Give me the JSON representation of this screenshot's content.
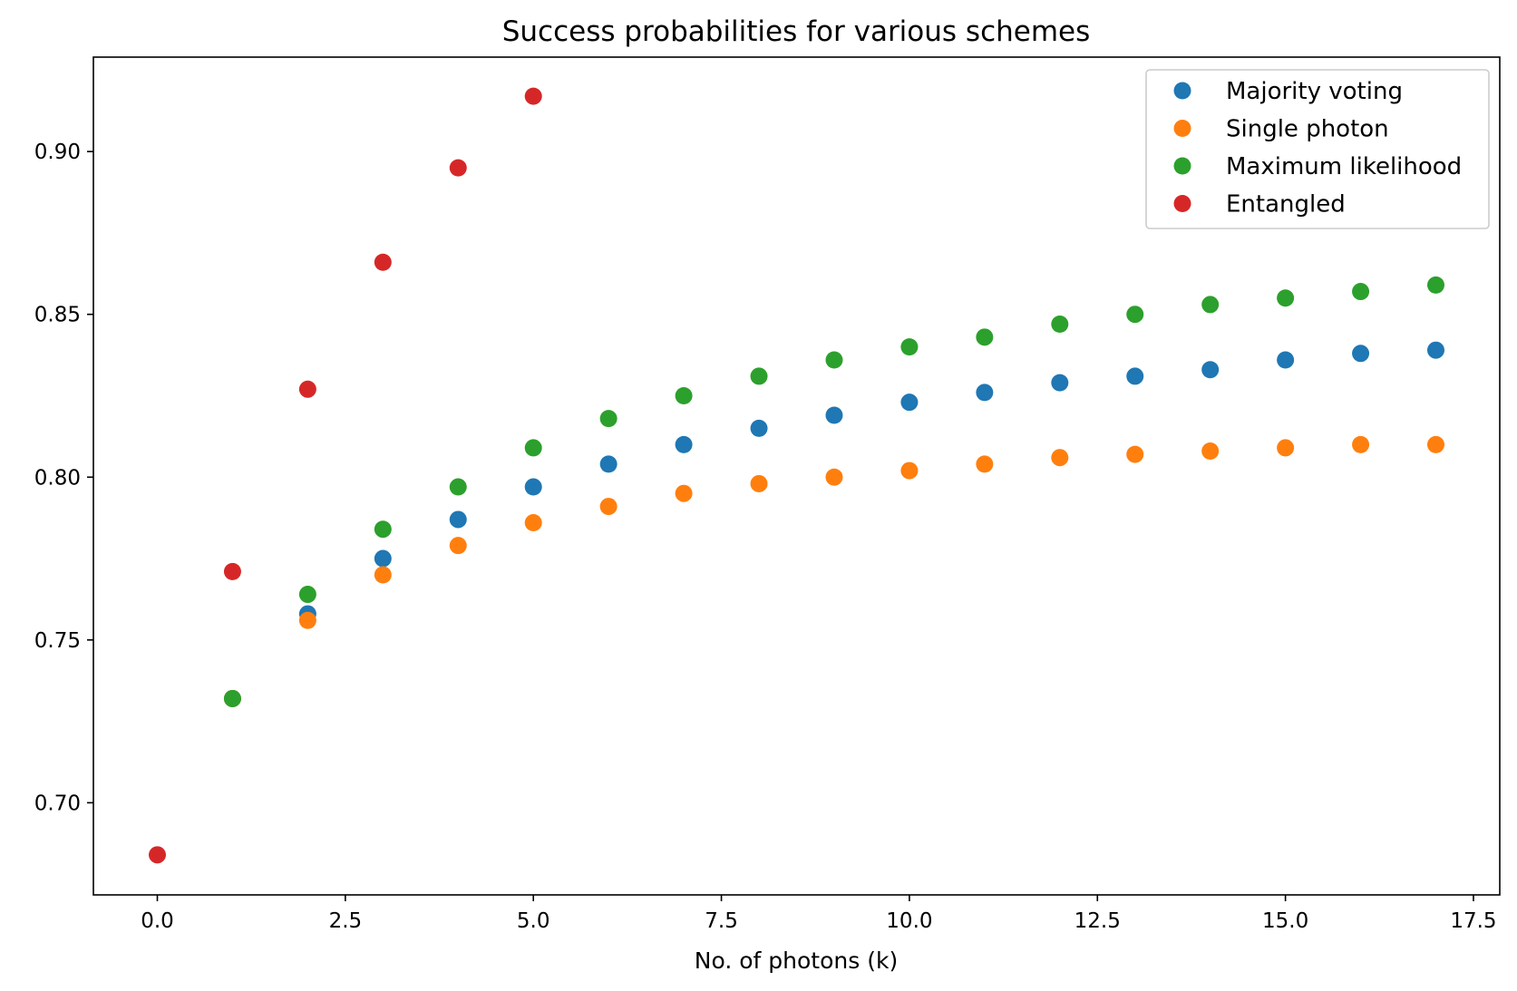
{
  "chart_data": {
    "type": "scatter",
    "title": "Success probabilities for various schemes",
    "xlabel": "No. of photons (k)",
    "ylabel": "",
    "xlim": [
      -0.85,
      17.85
    ],
    "ylim": [
      0.6717,
      0.929
    ],
    "xticks": [
      0.0,
      2.5,
      5.0,
      7.5,
      10.0,
      12.5,
      15.0,
      17.5
    ],
    "xtick_labels": [
      "0.0",
      "2.5",
      "5.0",
      "7.5",
      "10.0",
      "12.5",
      "15.0",
      "17.5"
    ],
    "yticks": [
      0.7,
      0.75,
      0.8,
      0.85,
      0.9
    ],
    "ytick_labels": [
      "0.70",
      "0.75",
      "0.80",
      "0.85",
      "0.90"
    ],
    "grid": false,
    "legend_position": "top-right",
    "series": [
      {
        "name": "Majority voting",
        "color": "#1f77b4",
        "x": [
          1,
          2,
          3,
          4,
          5,
          6,
          7,
          8,
          9,
          10,
          11,
          12,
          13,
          14,
          15,
          16,
          17
        ],
        "y": [
          0.732,
          0.758,
          0.775,
          0.787,
          0.797,
          0.804,
          0.81,
          0.815,
          0.819,
          0.823,
          0.826,
          0.829,
          0.831,
          0.833,
          0.836,
          0.838,
          0.839
        ]
      },
      {
        "name": "Single photon",
        "color": "#ff7f0e",
        "x": [
          1,
          2,
          3,
          4,
          5,
          6,
          7,
          8,
          9,
          10,
          11,
          12,
          13,
          14,
          15,
          16,
          17
        ],
        "y": [
          0.732,
          0.756,
          0.77,
          0.779,
          0.786,
          0.791,
          0.795,
          0.798,
          0.8,
          0.802,
          0.804,
          0.806,
          0.807,
          0.808,
          0.809,
          0.81,
          0.81
        ]
      },
      {
        "name": "Maximum likelihood",
        "color": "#2ca02c",
        "x": [
          1,
          2,
          3,
          4,
          5,
          6,
          7,
          8,
          9,
          10,
          11,
          12,
          13,
          14,
          15,
          16,
          17
        ],
        "y": [
          0.732,
          0.764,
          0.784,
          0.797,
          0.809,
          0.818,
          0.825,
          0.831,
          0.836,
          0.84,
          0.843,
          0.847,
          0.85,
          0.853,
          0.855,
          0.857,
          0.859
        ]
      },
      {
        "name": "Entangled",
        "color": "#d62728",
        "x": [
          0,
          1,
          2,
          3,
          4,
          5
        ],
        "y": [
          0.684,
          0.771,
          0.827,
          0.866,
          0.895,
          0.917
        ]
      }
    ]
  }
}
